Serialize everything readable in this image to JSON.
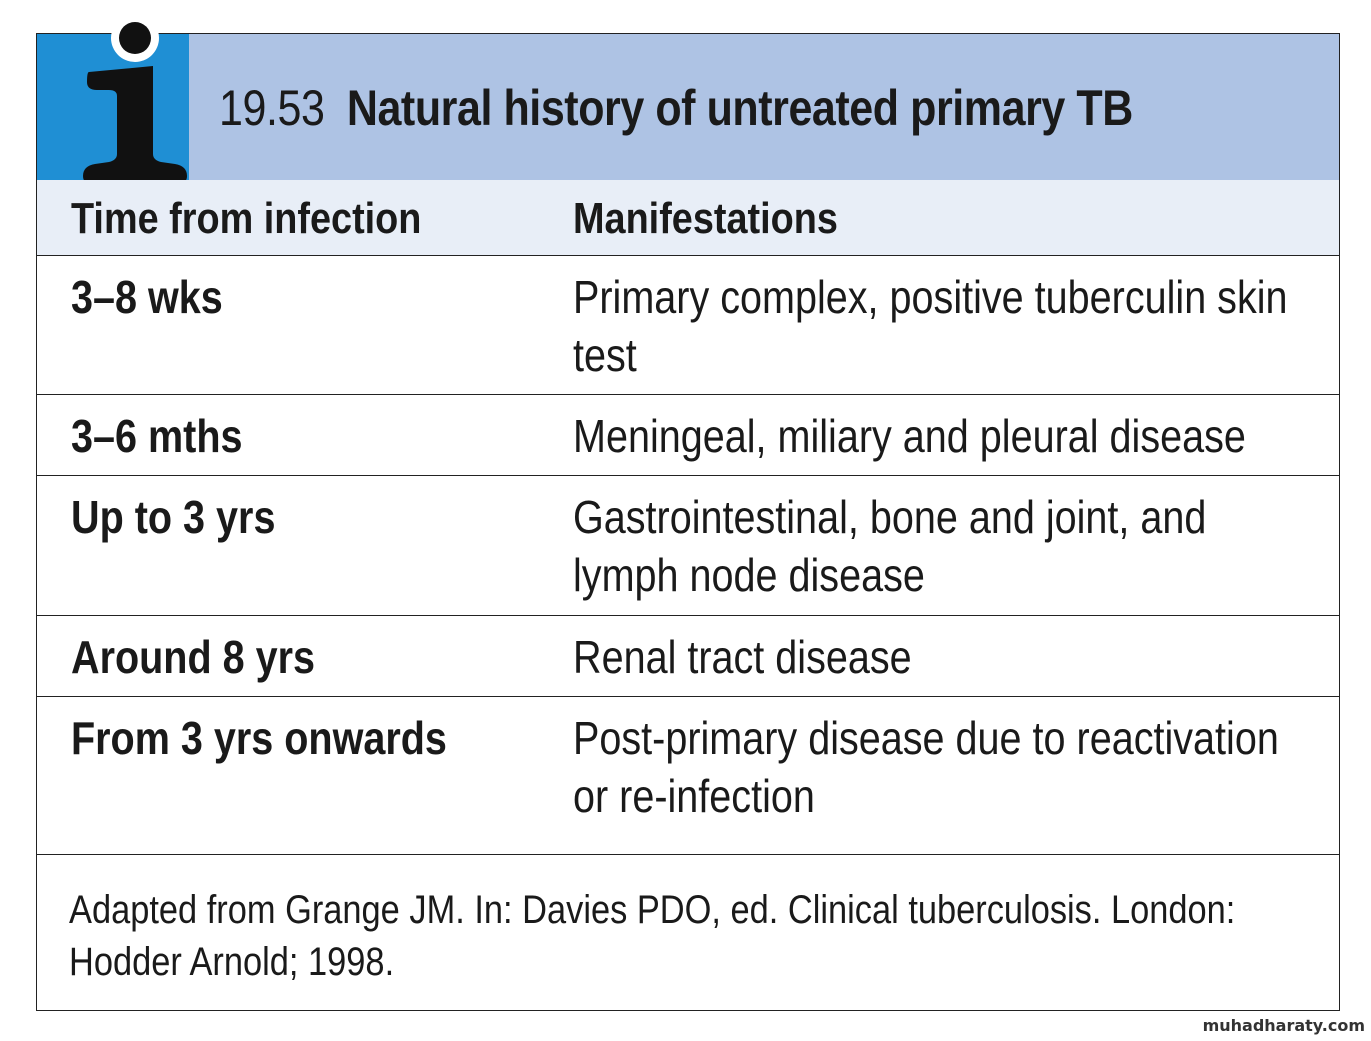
{
  "title": {
    "number": "19.53",
    "text": "Natural history of untreated primary TB"
  },
  "icon": "info-icon",
  "colors": {
    "title_bar": "#aec3e4",
    "icon_block": "#1f8fd4",
    "header_row": "#e8eef7"
  },
  "table": {
    "headers": [
      "Time from infection",
      "Manifestations"
    ],
    "rows": [
      {
        "time": "3–8 wks",
        "manifestation": "Primary complex, positive tuberculin skin test"
      },
      {
        "time": "3–6 mths",
        "manifestation": "Meningeal, miliary and pleural disease"
      },
      {
        "time": "Up to 3 yrs",
        "manifestation": "Gastrointestinal, bone and joint, and lymph node disease"
      },
      {
        "time": "Around 8 yrs",
        "manifestation": "Renal tract disease"
      },
      {
        "time": "From 3 yrs onwards",
        "manifestation": "Post-primary disease due to reactivation or re-infection"
      }
    ]
  },
  "source": "Adapted from Grange JM. In: Davies PDO, ed. Clinical tuberculosis. London: Hodder Arnold; 1998.",
  "watermark": "muhadharaty.com"
}
